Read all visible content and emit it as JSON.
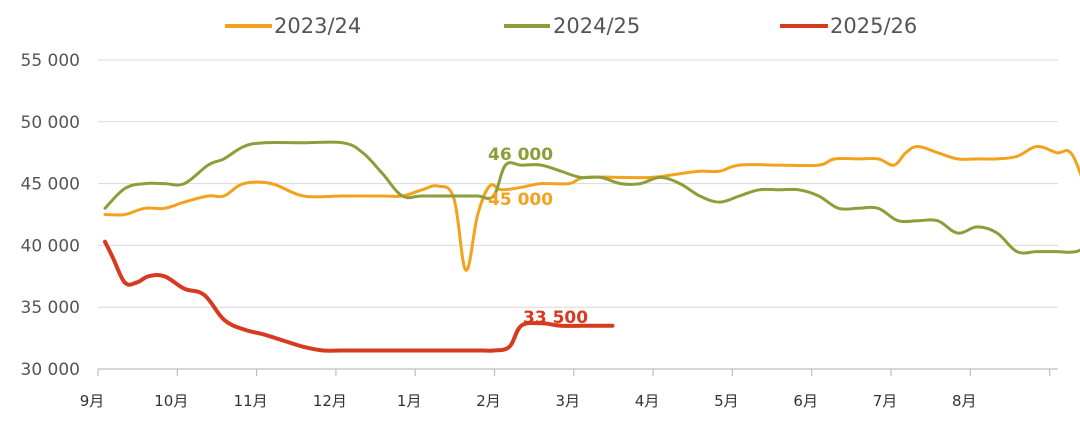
{
  "chart_data": {
    "type": "line",
    "title": "",
    "xlabel": "",
    "ylabel": "",
    "ylim": [
      30000,
      55000
    ],
    "yticks": [
      "55 000",
      "50 000",
      "45 000",
      "40 000",
      "35 000",
      "30 000"
    ],
    "ytick_values": [
      55000,
      50000,
      45000,
      40000,
      35000,
      30000
    ],
    "categories": [
      "9月",
      "10月",
      "11月",
      "12月",
      "1月",
      "2月",
      "3月",
      "4月",
      "5月",
      "6月",
      "7月",
      "8月"
    ],
    "grid": "horizontal",
    "legend_position": "top",
    "series": [
      {
        "name": "2023/24",
        "color": "#F4A11D",
        "label": "45 000",
        "points": [
          [
            0.0,
            42500
          ],
          [
            0.25,
            42500
          ],
          [
            0.5,
            43000
          ],
          [
            0.75,
            43000
          ],
          [
            1.0,
            43500
          ],
          [
            1.3,
            44000
          ],
          [
            1.5,
            44000
          ],
          [
            1.75,
            45000
          ],
          [
            2.1,
            45000
          ],
          [
            2.5,
            44000
          ],
          [
            3.0,
            44000
          ],
          [
            3.5,
            44000
          ],
          [
            3.75,
            44000
          ],
          [
            4.0,
            44500
          ],
          [
            4.2,
            44800
          ],
          [
            4.4,
            43800
          ],
          [
            4.55,
            38000
          ],
          [
            4.7,
            42500
          ],
          [
            4.85,
            44800
          ],
          [
            5.0,
            44500
          ],
          [
            5.25,
            44700
          ],
          [
            5.5,
            45000
          ],
          [
            5.85,
            45000
          ],
          [
            6.05,
            45500
          ],
          [
            6.5,
            45500
          ],
          [
            6.9,
            45500
          ],
          [
            7.25,
            45800
          ],
          [
            7.5,
            46000
          ],
          [
            7.75,
            46000
          ],
          [
            8.0,
            46500
          ],
          [
            8.5,
            46500
          ],
          [
            9.0,
            46500
          ],
          [
            9.2,
            47000
          ],
          [
            9.5,
            47000
          ],
          [
            9.75,
            47000
          ],
          [
            9.95,
            46500
          ],
          [
            10.1,
            47500
          ],
          [
            10.25,
            48000
          ],
          [
            10.5,
            47500
          ],
          [
            10.75,
            47000
          ],
          [
            11.0,
            47000
          ],
          [
            11.25,
            47000
          ],
          [
            11.5,
            47200
          ],
          [
            11.75,
            48000
          ],
          [
            12.0,
            47500
          ],
          [
            12.2,
            47300
          ],
          [
            12.45,
            43000
          ]
        ]
      },
      {
        "name": "2024/25",
        "color": "#8C9E3A",
        "label": "46 000",
        "points": [
          [
            0.0,
            43000
          ],
          [
            0.25,
            44600
          ],
          [
            0.5,
            45000
          ],
          [
            0.75,
            45000
          ],
          [
            1.0,
            45000
          ],
          [
            1.3,
            46500
          ],
          [
            1.5,
            47000
          ],
          [
            1.75,
            48000
          ],
          [
            2.0,
            48300
          ],
          [
            2.5,
            48300
          ],
          [
            3.0,
            48300
          ],
          [
            3.25,
            47500
          ],
          [
            3.5,
            45800
          ],
          [
            3.75,
            44000
          ],
          [
            4.0,
            44000
          ],
          [
            4.5,
            44000
          ],
          [
            4.7,
            44000
          ],
          [
            4.9,
            44000
          ],
          [
            5.05,
            46500
          ],
          [
            5.25,
            46500
          ],
          [
            5.5,
            46500
          ],
          [
            5.75,
            46000
          ],
          [
            6.0,
            45500
          ],
          [
            6.25,
            45500
          ],
          [
            6.5,
            45000
          ],
          [
            6.75,
            45000
          ],
          [
            7.0,
            45500
          ],
          [
            7.25,
            45000
          ],
          [
            7.5,
            44000
          ],
          [
            7.75,
            43500
          ],
          [
            8.0,
            44000
          ],
          [
            8.25,
            44500
          ],
          [
            8.5,
            44500
          ],
          [
            8.75,
            44500
          ],
          [
            9.0,
            44000
          ],
          [
            9.25,
            43000
          ],
          [
            9.5,
            43000
          ],
          [
            9.75,
            43000
          ],
          [
            10.0,
            42000
          ],
          [
            10.25,
            42000
          ],
          [
            10.5,
            42000
          ],
          [
            10.75,
            41000
          ],
          [
            11.0,
            41500
          ],
          [
            11.25,
            41000
          ],
          [
            11.5,
            39500
          ],
          [
            11.75,
            39500
          ],
          [
            12.0,
            39500
          ],
          [
            12.25,
            39500
          ],
          [
            12.45,
            40200
          ]
        ]
      },
      {
        "name": "2025/26",
        "color": "#D63B1F",
        "label": "33 500",
        "points": [
          [
            0.0,
            40300
          ],
          [
            0.1,
            39000
          ],
          [
            0.25,
            37000
          ],
          [
            0.4,
            37000
          ],
          [
            0.55,
            37500
          ],
          [
            0.75,
            37500
          ],
          [
            1.0,
            36500
          ],
          [
            1.25,
            36000
          ],
          [
            1.5,
            34000
          ],
          [
            1.75,
            33200
          ],
          [
            2.0,
            32800
          ],
          [
            2.25,
            32300
          ],
          [
            2.5,
            31800
          ],
          [
            2.75,
            31500
          ],
          [
            3.0,
            31500
          ],
          [
            3.5,
            31500
          ],
          [
            4.0,
            31500
          ],
          [
            4.5,
            31500
          ],
          [
            4.75,
            31500
          ],
          [
            4.9,
            31500
          ],
          [
            5.1,
            31800
          ],
          [
            5.25,
            33500
          ],
          [
            5.5,
            33700
          ],
          [
            5.75,
            33500
          ],
          [
            6.0,
            33500
          ],
          [
            6.25,
            33500
          ],
          [
            6.4,
            33500
          ]
        ]
      }
    ]
  }
}
